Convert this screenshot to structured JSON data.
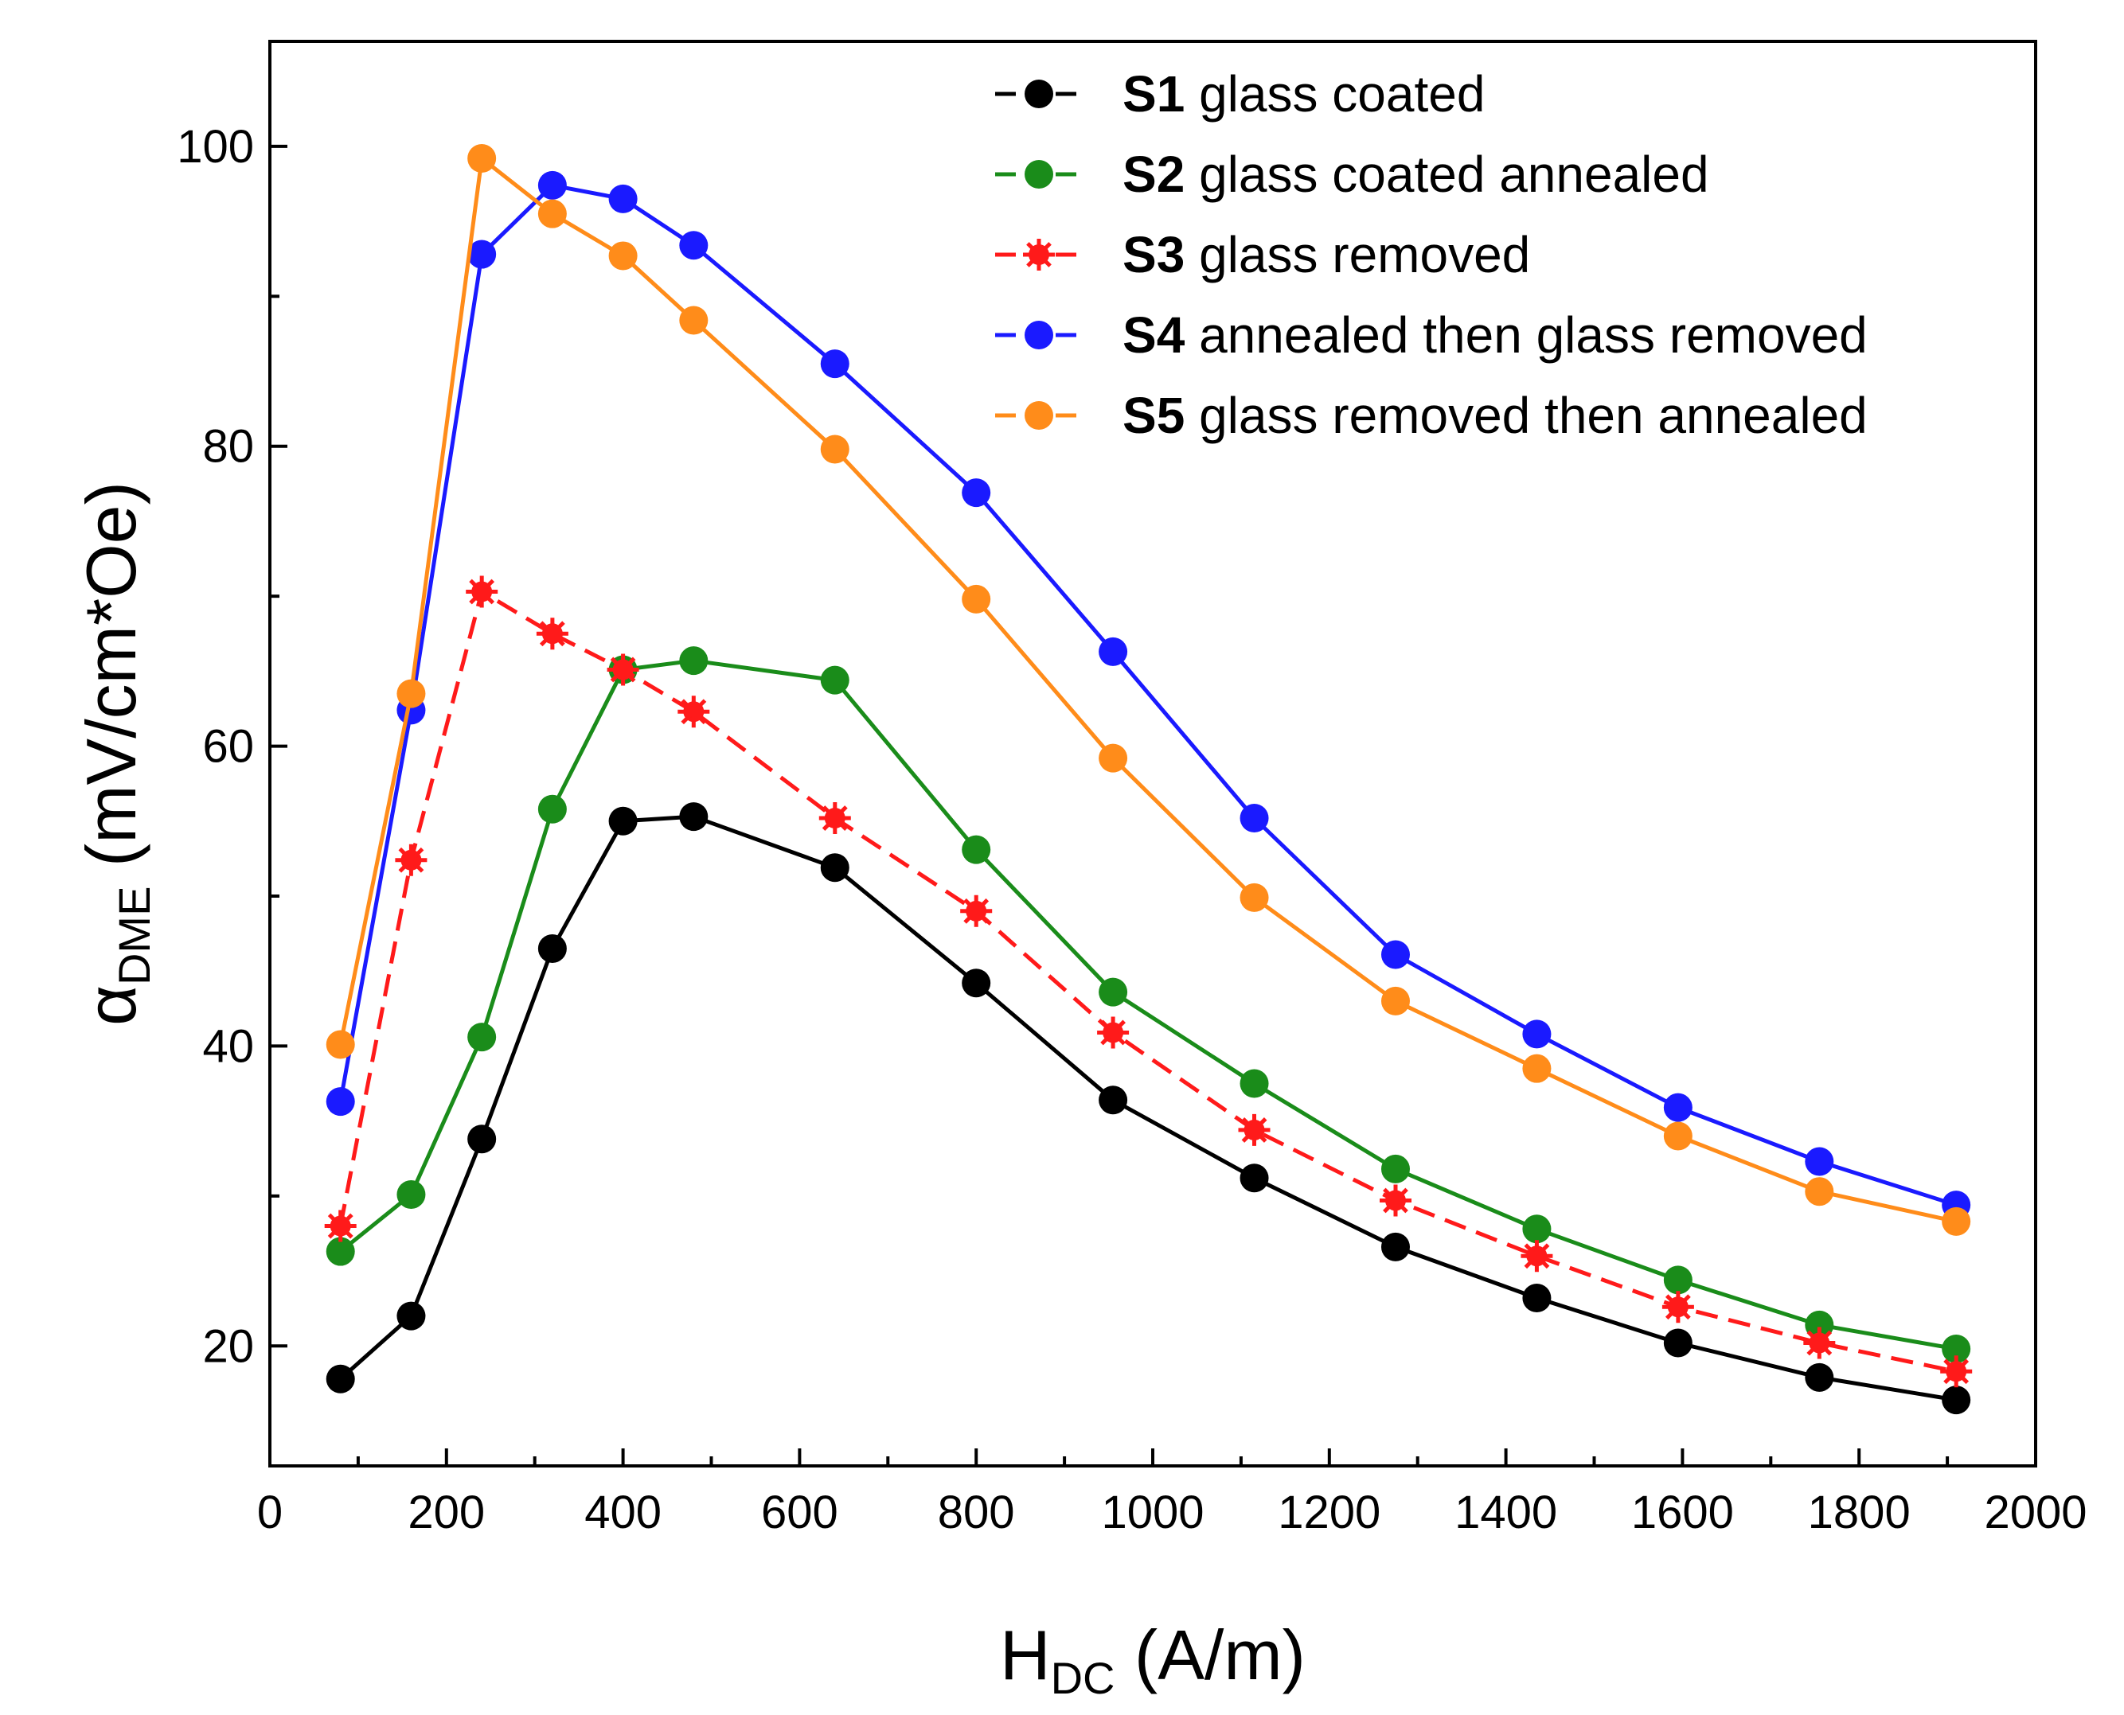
{
  "chart_data": {
    "type": "line",
    "title": "",
    "xlabel": {
      "main": "H",
      "sub": "DC",
      "unit": " (A/m)"
    },
    "ylabel": {
      "main": "α",
      "sub": "DME",
      "unit": " (mV/cm*Oe)"
    },
    "xlim": [
      0,
      2000
    ],
    "ylim": [
      12,
      107
    ],
    "xticks": [
      "0",
      "200",
      "400",
      "600",
      "800",
      "1000",
      "1200",
      "1400",
      "1600",
      "1800",
      "2000"
    ],
    "yticks": [
      "20",
      "40",
      "60",
      "80",
      "100"
    ],
    "grid": false,
    "legend_position": "top-right",
    "series": [
      {
        "id": "S1",
        "name": "glass coated",
        "color": "#000000",
        "marker": "circle",
        "line": "solid",
        "x": [
          80,
          160,
          240,
          320,
          400,
          480,
          640,
          800,
          955,
          1115,
          1275,
          1435,
          1595,
          1755,
          1910
        ],
        "y": [
          17.8,
          22.0,
          33.8,
          46.5,
          55.0,
          55.3,
          51.9,
          44.2,
          36.4,
          31.2,
          26.6,
          23.2,
          20.2,
          17.9,
          16.4
        ]
      },
      {
        "id": "S2",
        "name": "glass coated annealed",
        "color": "#1a8c1a",
        "marker": "circle",
        "line": "solid",
        "x": [
          80,
          160,
          240,
          320,
          400,
          480,
          640,
          800,
          955,
          1115,
          1275,
          1435,
          1595,
          1755,
          1910
        ],
        "y": [
          26.3,
          30.1,
          40.6,
          55.8,
          65.1,
          65.7,
          64.4,
          53.1,
          43.6,
          37.5,
          31.8,
          27.8,
          24.4,
          21.4,
          19.8
        ]
      },
      {
        "id": "S3",
        "name": "glass removed",
        "color": "#ff1a1a",
        "marker": "star",
        "line": "dashed",
        "x": [
          80,
          160,
          240,
          320,
          400,
          480,
          640,
          800,
          955,
          1115,
          1275,
          1435,
          1595,
          1755,
          1910
        ],
        "y": [
          28.0,
          52.4,
          70.3,
          67.5,
          65.1,
          62.3,
          55.2,
          49.0,
          40.9,
          34.4,
          29.7,
          26.0,
          22.6,
          20.2,
          18.3
        ]
      },
      {
        "id": "S4",
        "name": "annealed then glass removed",
        "color": "#1a1aff",
        "marker": "circle",
        "line": "solid",
        "x": [
          80,
          160,
          240,
          320,
          400,
          480,
          640,
          800,
          955,
          1115,
          1275,
          1435,
          1595,
          1755,
          1910
        ],
        "y": [
          36.3,
          62.4,
          92.8,
          97.4,
          96.5,
          93.4,
          85.5,
          76.9,
          66.3,
          55.2,
          46.1,
          40.8,
          35.9,
          32.3,
          29.4
        ]
      },
      {
        "id": "S5",
        "name": "glass removed then annealed",
        "color": "#ff8c1a",
        "marker": "circle",
        "line": "solid",
        "x": [
          80,
          160,
          240,
          320,
          400,
          480,
          640,
          800,
          955,
          1115,
          1275,
          1435,
          1595,
          1755,
          1910
        ],
        "y": [
          40.1,
          63.5,
          99.2,
          95.5,
          92.7,
          88.4,
          79.8,
          69.8,
          59.2,
          49.9,
          43.0,
          38.5,
          34.0,
          30.3,
          28.3
        ]
      }
    ]
  }
}
